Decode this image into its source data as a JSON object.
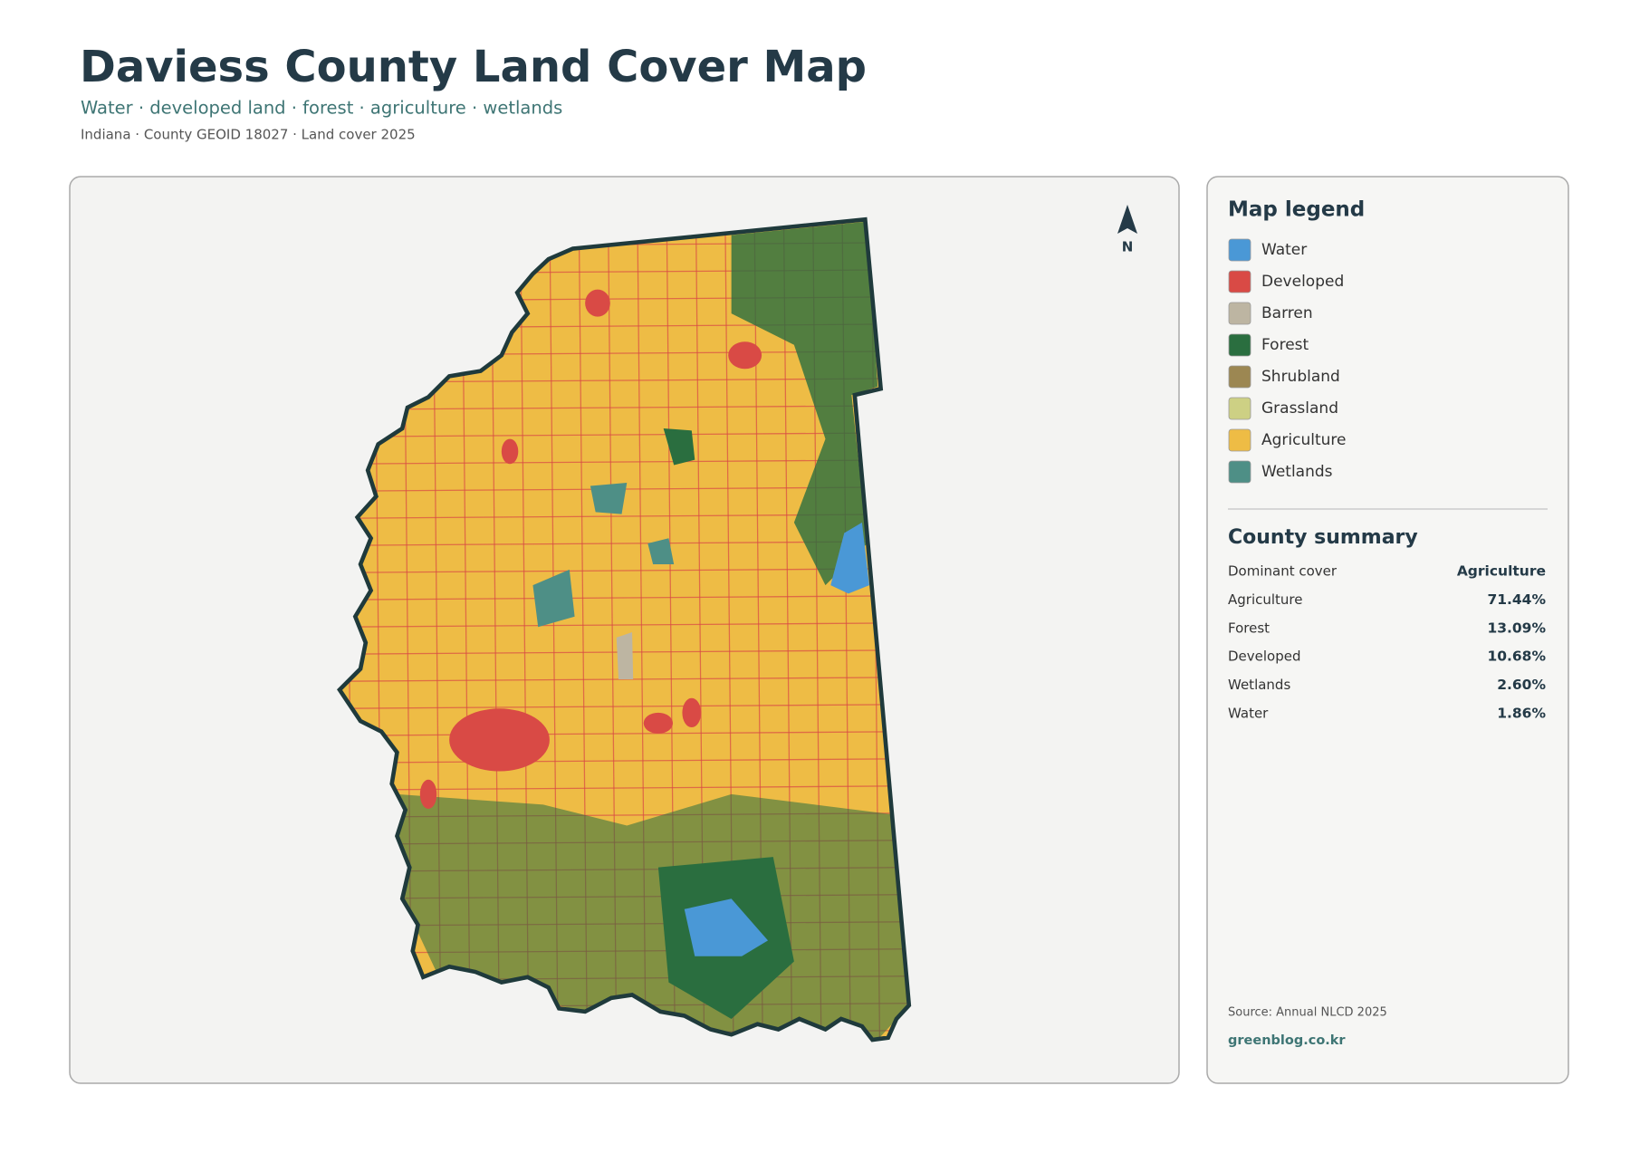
{
  "header": {
    "title": "Daviess County Land Cover Map",
    "subtitle": "Water · developed land · forest · agriculture · wetlands",
    "meta": "Indiana · County GEOID 18027 · Land cover 2025"
  },
  "map": {
    "north_label": "N"
  },
  "legend": {
    "title": "Map legend",
    "items": [
      {
        "label": "Water",
        "color": "#4a98d6"
      },
      {
        "label": "Developed",
        "color": "#d94a45"
      },
      {
        "label": "Barren",
        "color": "#bdb5a2"
      },
      {
        "label": "Forest",
        "color": "#2a6e3f"
      },
      {
        "label": "Shrubland",
        "color": "#9c8752"
      },
      {
        "label": "Grassland",
        "color": "#cdd084"
      },
      {
        "label": "Agriculture",
        "color": "#eebc45"
      },
      {
        "label": "Wetlands",
        "color": "#4e8f86"
      }
    ]
  },
  "summary": {
    "title": "County summary",
    "rows": [
      {
        "label": "Dominant cover",
        "value": "Agriculture"
      },
      {
        "label": "Agriculture",
        "value": "71.44%"
      },
      {
        "label": "Forest",
        "value": "13.09%"
      },
      {
        "label": "Developed",
        "value": "10.68%"
      },
      {
        "label": "Wetlands",
        "value": "2.60%"
      },
      {
        "label": "Water",
        "value": "1.86%"
      }
    ]
  },
  "footer": {
    "source": "Source: Annual NLCD 2025",
    "website": "greenblog.co.kr"
  }
}
